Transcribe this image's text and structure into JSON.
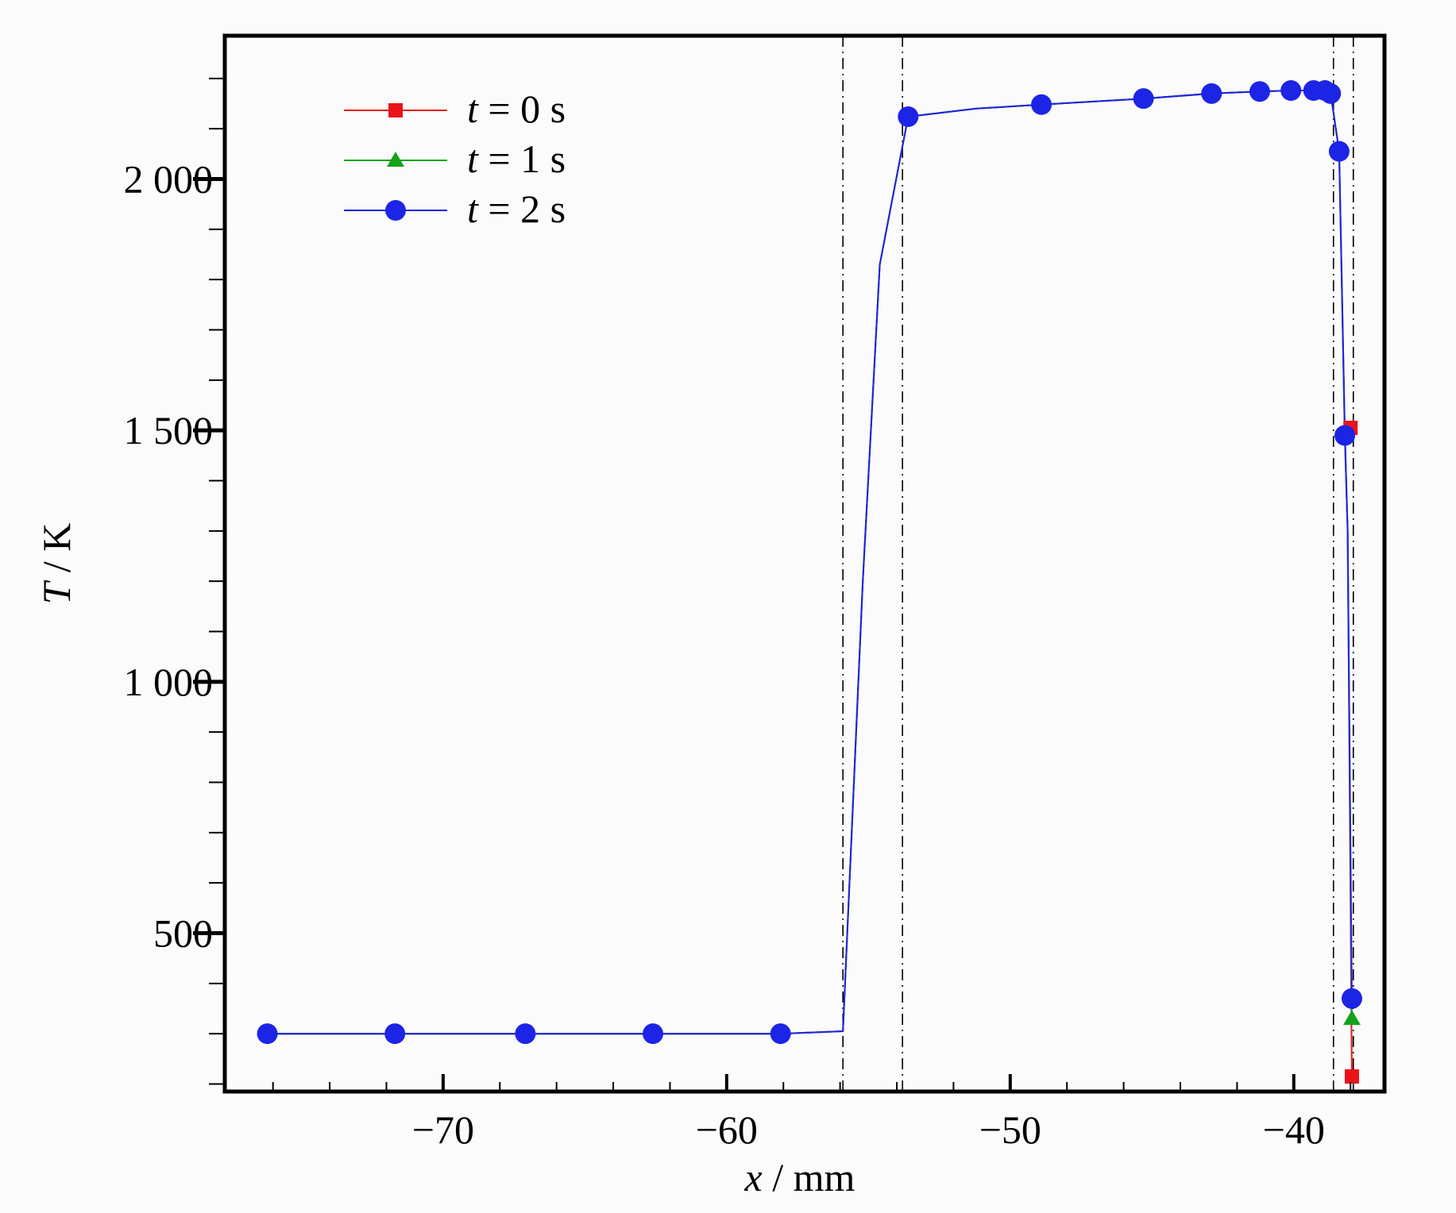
{
  "chart_data": {
    "type": "line",
    "xlabel": {
      "var": "x",
      "sep": " / ",
      "unit": "mm"
    },
    "ylabel": {
      "var": "T",
      "sep": " / ",
      "unit": "K"
    },
    "xlim": [
      -77.7,
      -36.8
    ],
    "ylim": [
      185,
      2285
    ],
    "x_ticks": [
      -70,
      -60,
      -50,
      -40
    ],
    "x_tick_labels": [
      "−70",
      "−60",
      "−50",
      "−40"
    ],
    "x_minor_step": 2,
    "y_ticks": [
      500,
      1000,
      1500,
      2000
    ],
    "y_tick_labels": [
      "500",
      "1 000",
      "1 500",
      "2 000"
    ],
    "y_minor_step": 100,
    "grid": false,
    "legend": {
      "placement": "top-left"
    },
    "reference_lines_x": [
      -55.9,
      -53.8,
      -38.6,
      -37.9
    ],
    "series": [
      {
        "name": "t = 0 s",
        "legend": {
          "var": "t",
          "eq": " = ",
          "val": "0 s"
        },
        "color": "#e8141a",
        "marker": "square",
        "x": [
          -76.2,
          -71.7,
          -67.1,
          -62.6,
          -58.1,
          -55.9,
          -55.2,
          -54.6,
          -53.6,
          -51.2,
          -48.9,
          -45.3,
          -42.9,
          -41.2,
          -40.1,
          -39.3,
          -38.9,
          -38.7,
          -38.4,
          -38.2,
          -38.1,
          -37.95
        ],
        "y": [
          300,
          300,
          300,
          300,
          300,
          305,
          1200,
          1830,
          2124,
          2140,
          2148,
          2160,
          2170,
          2174,
          2176,
          2176,
          2176,
          2170,
          2055,
          1505,
          1300,
          215
        ],
        "marker_x": [
          -38.0
        ],
        "marker_y": [
          1505
        ],
        "marker_x_end": [
          -37.95
        ],
        "marker_y_end": [
          215
        ]
      },
      {
        "name": "t = 1 s",
        "legend": {
          "var": "t",
          "eq": " = ",
          "val": "1 s"
        },
        "color": "#16a21c",
        "marker": "triangle",
        "x": [
          -76.2,
          -71.7,
          -67.1,
          -62.6,
          -58.1,
          -55.9,
          -55.2,
          -54.6,
          -53.6,
          -51.2,
          -48.9,
          -45.3,
          -42.9,
          -41.2,
          -40.1,
          -39.3,
          -38.9,
          -38.7,
          -38.4,
          -38.2,
          -38.1,
          -37.95
        ],
        "y": [
          300,
          300,
          300,
          300,
          300,
          305,
          1200,
          1830,
          2124,
          2140,
          2148,
          2160,
          2170,
          2174,
          2176,
          2176,
          2176,
          2170,
          2055,
          1495,
          1300,
          330
        ],
        "marker_x": [
          -37.95
        ],
        "marker_y": [
          330
        ]
      },
      {
        "name": "t = 2 s",
        "legend": {
          "var": "t",
          "eq": " = ",
          "val": "2 s"
        },
        "color": "#1c24e6",
        "marker": "circle",
        "x": [
          -76.2,
          -71.7,
          -67.1,
          -62.6,
          -58.1,
          -55.9,
          -55.2,
          -54.6,
          -53.6,
          -51.2,
          -48.9,
          -45.3,
          -42.9,
          -41.2,
          -40.1,
          -39.3,
          -38.9,
          -38.7,
          -38.4,
          -38.2,
          -38.1,
          -37.95
        ],
        "y": [
          300,
          300,
          300,
          300,
          300,
          305,
          1200,
          1830,
          2124,
          2140,
          2148,
          2160,
          2170,
          2174,
          2176,
          2176,
          2176,
          2170,
          2055,
          1490,
          1300,
          370
        ],
        "marker_x": [
          -76.2,
          -71.7,
          -67.1,
          -62.6,
          -58.1,
          -53.6,
          -48.9,
          -45.3,
          -42.9,
          -41.2,
          -40.1,
          -39.3,
          -38.9,
          -38.7,
          -38.4,
          -38.2,
          -37.95
        ],
        "marker_y": [
          300,
          300,
          300,
          300,
          300,
          2124,
          2148,
          2160,
          2170,
          2174,
          2176,
          2176,
          2176,
          2170,
          2055,
          1490,
          370
        ]
      }
    ]
  }
}
